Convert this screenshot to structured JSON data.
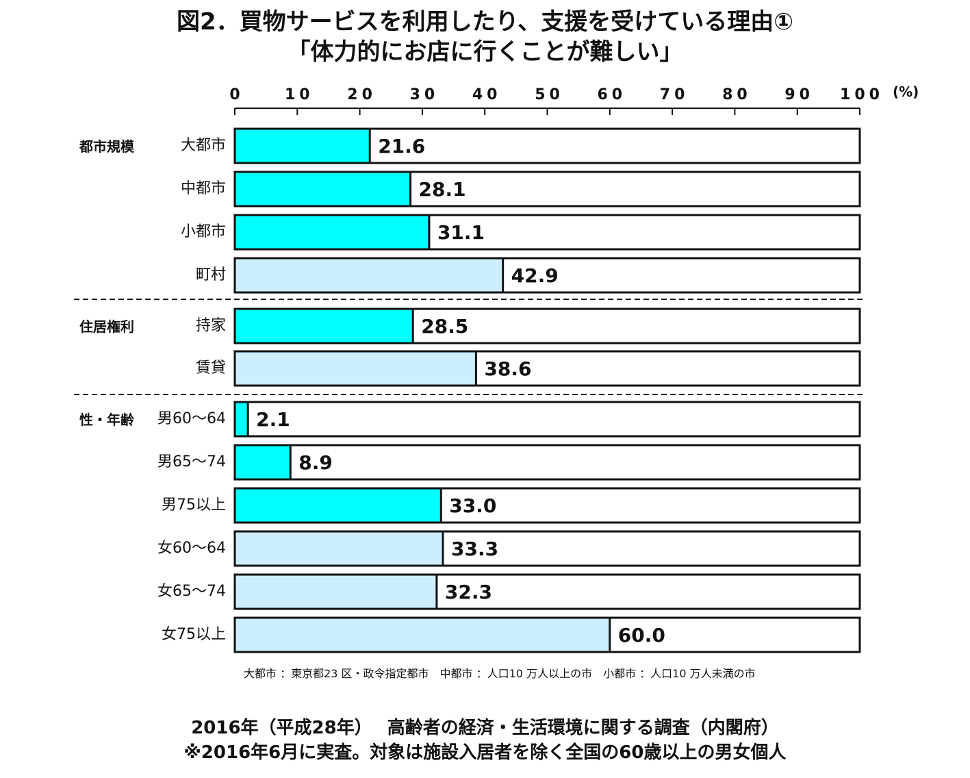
{
  "title_line1": "図2．買物サービスを利用したり、支援を受けている理由①",
  "title_line2": "「体力的にお店に行くことが難しい」",
  "chart_data": {
    "type": "bar",
    "orientation": "horizontal",
    "title": "図2．買物サービスを利用したり、支援を受けている理由① 「体力的にお店に行くことが難しい」",
    "xlim": [
      0,
      100
    ],
    "x_ticks": [
      "0",
      "10",
      "20",
      "30",
      "40",
      "50",
      "60",
      "70",
      "80",
      "90",
      "100"
    ],
    "unit": "(%)",
    "colors": {
      "highlight": "#00ffff",
      "normal": "#cceeff",
      "remainder": "#ffffff",
      "outline": "#111111"
    },
    "groups": [
      {
        "name": "都市規模",
        "items": [
          {
            "label": "大都市",
            "value": 21.6,
            "value_label": "21.6",
            "highlight": true
          },
          {
            "label": "中都市",
            "value": 28.1,
            "value_label": "28.1",
            "highlight": true
          },
          {
            "label": "小都市",
            "value": 31.1,
            "value_label": "31.1",
            "highlight": true
          },
          {
            "label": "町村",
            "value": 42.9,
            "value_label": "42.9",
            "highlight": false
          }
        ]
      },
      {
        "name": "住居権利",
        "items": [
          {
            "label": "持家",
            "value": 28.5,
            "value_label": "28.5",
            "highlight": true
          },
          {
            "label": "賃貸",
            "value": 38.6,
            "value_label": "38.6",
            "highlight": false
          }
        ]
      },
      {
        "name": "性・年齢",
        "items": [
          {
            "label": "男60～64",
            "value": 2.1,
            "value_label": "2.1",
            "highlight": true
          },
          {
            "label": "男65～74",
            "value": 8.9,
            "value_label": "8.9",
            "highlight": true
          },
          {
            "label": "男75以上",
            "value": 33.0,
            "value_label": "33.0",
            "highlight": true
          },
          {
            "label": "女60～64",
            "value": 33.3,
            "value_label": "33.3",
            "highlight": false
          },
          {
            "label": "女65～74",
            "value": 32.3,
            "value_label": "32.3",
            "highlight": false
          },
          {
            "label": "女75以上",
            "value": 60.0,
            "value_label": "60.0",
            "highlight": false
          }
        ]
      }
    ]
  },
  "footnote": "大都市 ：東京都23 区・政令指定都市　中都市 ：人口10 万人以上の市　小都市 ：人口10 万人未満の市",
  "source_line1": "2016年（平成28年）　 高齢者の経済・生活環境に関する調査（内閣府）",
  "source_line2": "※2016年6月に実査。対象は施設入居者を除く全国の60歳以上の男女個人"
}
